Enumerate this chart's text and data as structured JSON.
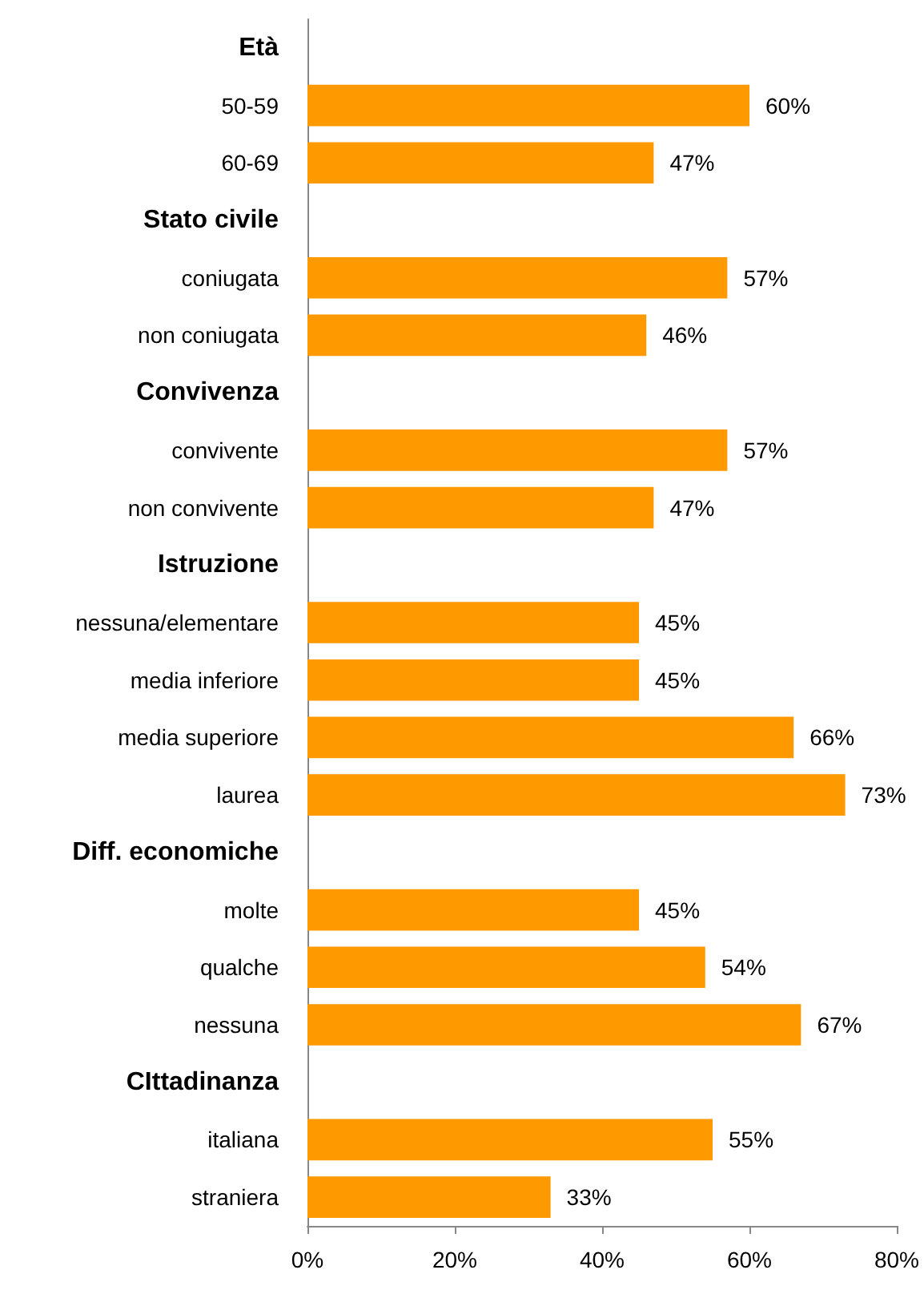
{
  "chart_data": {
    "type": "bar",
    "orientation": "horizontal",
    "categories": [
      "Età",
      "50-59",
      "60-69",
      "Stato civile",
      "coniugata",
      "non coniugata",
      "Convivenza",
      "convivente",
      "non convivente",
      "Istruzione",
      "nessuna/elementare",
      "media inferiore",
      "media superiore",
      "laurea",
      "Diff. economiche",
      "molte",
      "qualche",
      "nessuna",
      "CIttadinanza",
      "italiana",
      "straniera"
    ],
    "values": [
      null,
      60,
      47,
      null,
      57,
      46,
      null,
      57,
      47,
      null,
      45,
      45,
      66,
      73,
      null,
      45,
      54,
      67,
      null,
      55,
      33
    ],
    "value_labels": [
      null,
      "60%",
      "47%",
      null,
      "57%",
      "46%",
      null,
      "57%",
      "47%",
      null,
      "45%",
      "45%",
      "66%",
      "73%",
      null,
      "45%",
      "54%",
      "67%",
      null,
      "55%",
      "33%"
    ],
    "color": "#ff9900",
    "xlim": [
      0,
      80
    ],
    "xticks": [
      {
        "value": 0,
        "label": "0%"
      },
      {
        "value": 20,
        "label": "20%"
      },
      {
        "value": 40,
        "label": "40%"
      },
      {
        "value": 60,
        "label": "60%"
      },
      {
        "value": 80,
        "label": "80%"
      }
    ],
    "grid": false
  }
}
